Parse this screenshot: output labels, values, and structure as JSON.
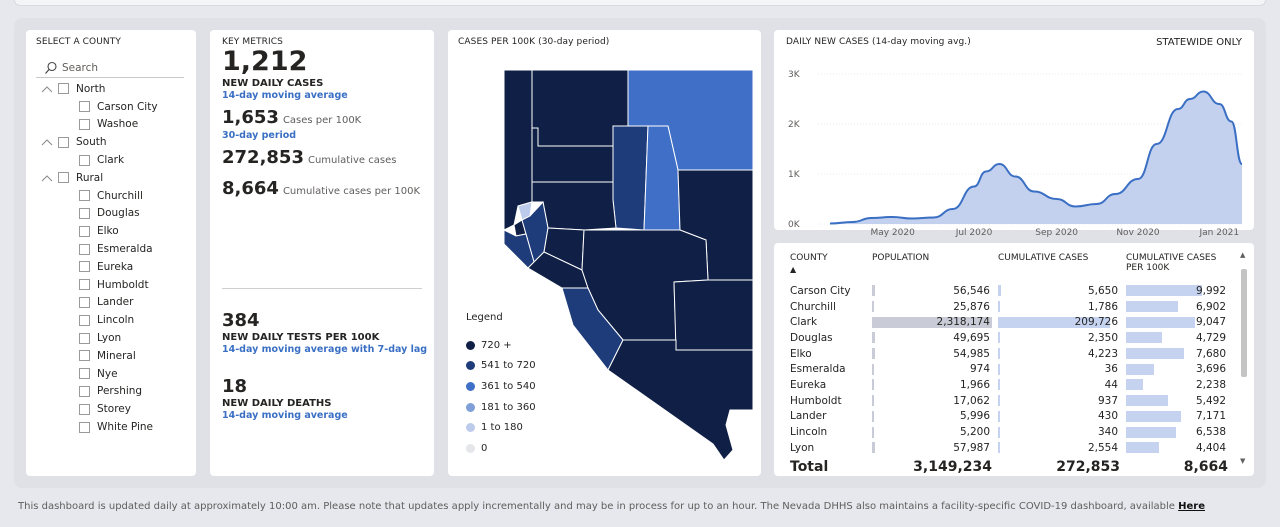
{
  "slicer": {
    "title": "SELECT A COUNTY",
    "search_placeholder": "Search",
    "groups": [
      {
        "label": "North",
        "children": [
          "Carson City",
          "Washoe"
        ]
      },
      {
        "label": "South",
        "children": [
          "Clark"
        ]
      },
      {
        "label": "Rural",
        "children": [
          "Churchill",
          "Douglas",
          "Elko",
          "Esmeralda",
          "Eureka",
          "Humboldt",
          "Lander",
          "Lincoln",
          "Lyon",
          "Mineral",
          "Nye",
          "Pershing",
          "Storey",
          "White Pine"
        ]
      }
    ]
  },
  "metrics": {
    "title": "KEY METRICS",
    "daily_cases": {
      "value": "1,212",
      "label": "NEW DAILY CASES",
      "sub": "14-day moving average"
    },
    "per100k": {
      "value": "1,653",
      "label": "Cases per 100K",
      "sub": "30-day period"
    },
    "cumulative": {
      "value": "272,853",
      "label": "Cumulative cases"
    },
    "cumulative_per100k": {
      "value": "8,664",
      "label": "Cumulative cases per 100K"
    },
    "tests": {
      "value": "384",
      "label": "NEW DAILY TESTS PER 100K",
      "sub": "14-day moving average with 7-day lag"
    },
    "deaths": {
      "value": "18",
      "label": "NEW DAILY DEATHS",
      "sub": "14-day moving average"
    }
  },
  "map": {
    "title": "CASES PER 100K (30-day period)",
    "legend_title": "Legend",
    "legend": [
      {
        "label": "720 +",
        "color": "#0f1f45"
      },
      {
        "label": "541 to 720",
        "color": "#1e3b7a"
      },
      {
        "label": "361 to 540",
        "color": "#3f6fc6"
      },
      {
        "label": "181 to 360",
        "color": "#7e9fd8"
      },
      {
        "label": "1 to 180",
        "color": "#bccbeb"
      },
      {
        "label": "0",
        "color": "#e4e6ea"
      }
    ]
  },
  "line_chart": {
    "title": "DAILY NEW CASES (14-day moving avg.)",
    "scope_label": "STATEWIDE ONLY"
  },
  "chart_data": {
    "type": "area",
    "title": "DAILY NEW CASES (14-day moving avg.)",
    "x_tick_labels": [
      "May 2020",
      "Jul 2020",
      "Sep 2020",
      "Nov 2020",
      "Jan 2021"
    ],
    "y_tick_labels": [
      "0K",
      "1K",
      "2K",
      "3K"
    ],
    "ylim": [
      0,
      3000
    ],
    "x": [
      "2020-03-15",
      "2020-04-01",
      "2020-04-15",
      "2020-05-01",
      "2020-05-15",
      "2020-06-01",
      "2020-06-15",
      "2020-07-01",
      "2020-07-10",
      "2020-07-20",
      "2020-08-01",
      "2020-08-15",
      "2020-09-01",
      "2020-09-15",
      "2020-10-01",
      "2020-10-15",
      "2020-11-01",
      "2020-11-15",
      "2020-12-01",
      "2020-12-10",
      "2020-12-20",
      "2021-01-01",
      "2021-01-10",
      "2021-01-18"
    ],
    "values": [
      10,
      40,
      120,
      140,
      110,
      130,
      300,
      750,
      1050,
      1200,
      950,
      650,
      500,
      350,
      400,
      600,
      900,
      1600,
      2300,
      2500,
      2650,
      2400,
      2050,
      1200
    ],
    "grid": true,
    "color": "#3a6fc4"
  },
  "table": {
    "headers": [
      "COUNTY",
      "POPULATION",
      "CUMULATIVE CASES",
      "CUMULATIVE CASES PER 100K"
    ],
    "sort_indicator": "▲",
    "rows": [
      {
        "county": "Carson City",
        "population": "56,546",
        "cases": "5,650",
        "per100k": "9,992",
        "pop_n": 56546,
        "cases_n": 5650,
        "per_n": 9992
      },
      {
        "county": "Churchill",
        "population": "25,876",
        "cases": "1,786",
        "per100k": "6,902",
        "pop_n": 25876,
        "cases_n": 1786,
        "per_n": 6902
      },
      {
        "county": "Clark",
        "population": "2,318,174",
        "cases": "209,726",
        "per100k": "9,047",
        "pop_n": 2318174,
        "cases_n": 209726,
        "per_n": 9047
      },
      {
        "county": "Douglas",
        "population": "49,695",
        "cases": "2,350",
        "per100k": "4,729",
        "pop_n": 49695,
        "cases_n": 2350,
        "per_n": 4729
      },
      {
        "county": "Elko",
        "population": "54,985",
        "cases": "4,223",
        "per100k": "7,680",
        "pop_n": 54985,
        "cases_n": 4223,
        "per_n": 7680
      },
      {
        "county": "Esmeralda",
        "population": "974",
        "cases": "36",
        "per100k": "3,696",
        "pop_n": 974,
        "cases_n": 36,
        "per_n": 3696
      },
      {
        "county": "Eureka",
        "population": "1,966",
        "cases": "44",
        "per100k": "2,238",
        "pop_n": 1966,
        "cases_n": 44,
        "per_n": 2238
      },
      {
        "county": "Humboldt",
        "population": "17,062",
        "cases": "937",
        "per100k": "5,492",
        "pop_n": 17062,
        "cases_n": 937,
        "per_n": 5492
      },
      {
        "county": "Lander",
        "population": "5,996",
        "cases": "430",
        "per100k": "7,171",
        "pop_n": 5996,
        "cases_n": 430,
        "per_n": 7171
      },
      {
        "county": "Lincoln",
        "population": "5,200",
        "cases": "340",
        "per100k": "6,538",
        "pop_n": 5200,
        "cases_n": 340,
        "per_n": 6538
      },
      {
        "county": "Lyon",
        "population": "57,987",
        "cases": "2,554",
        "per100k": "4,404",
        "pop_n": 57987,
        "cases_n": 2554,
        "per_n": 4404
      }
    ],
    "total": {
      "label": "Total",
      "population": "3,149,234",
      "cases": "272,853",
      "per100k": "8,664"
    }
  },
  "footer": {
    "text": "This dashboard is updated daily at approximately 10:00 am. Please note that updates apply incrementally and may be in process for up to an hour.  The Nevada DHHS also maintains a facility-specific COVID-19 dashboard, available ",
    "link": "Here"
  }
}
